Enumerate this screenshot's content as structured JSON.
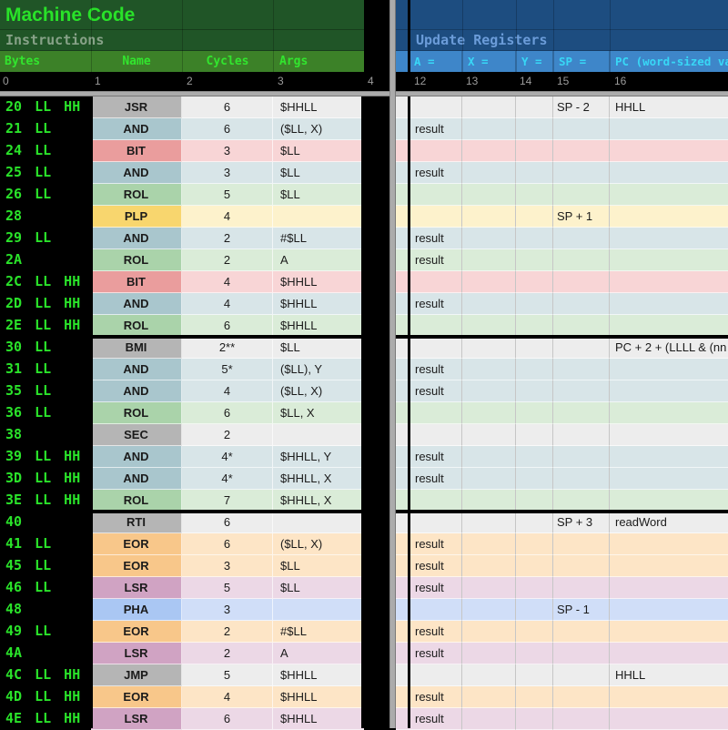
{
  "left_panel": {
    "title": "Machine Code",
    "subtitle": "Instructions",
    "columns": [
      "Bytes",
      "Name",
      "Cycles",
      "Args"
    ],
    "col_indices": [
      "0",
      "1",
      "2",
      "3",
      "4"
    ]
  },
  "right_panel": {
    "title": "Update Registers",
    "columns": [
      "A =",
      "X =",
      "Y =",
      "SP =",
      "PC (word-sized val"
    ],
    "col_indices": [
      "12",
      "13",
      "14",
      "15",
      "16"
    ]
  },
  "colors": {
    "left_header_bg": "#205527",
    "left_band_bg": "#3c8128",
    "title_text": "#29e229",
    "subtitle_text": "#87a288",
    "band_text": "#32e52e",
    "bytes_text": "#2ae32a",
    "right_header_bg": "#1d4d80",
    "right_band_bg": "#3e86c9",
    "right_title_text": "#6b9cd9",
    "right_band_text": "#38d7f6",
    "index_text": "#9b9b9b",
    "pane_divider": "#ababab",
    "background": "#000000"
  },
  "palettes": {
    "gray": {
      "dark": "#b5b5b5",
      "light": "#ededed"
    },
    "teal": {
      "dark": "#a9c6cd",
      "light": "#d8e5e8"
    },
    "pink": {
      "dark": "#ea9d9d",
      "light": "#f8d5d6"
    },
    "green": {
      "dark": "#aad3aa",
      "light": "#daecd8"
    },
    "yellow": {
      "dark": "#f8d66e",
      "light": "#fdf2cc"
    },
    "orange": {
      "dark": "#f8c78a",
      "light": "#fde5c6"
    },
    "mauve": {
      "dark": "#d0a3c3",
      "light": "#ecd8e6"
    },
    "blue": {
      "dark": "#aac7f3",
      "light": "#d0def8"
    }
  },
  "sections": [
    {
      "rows": [
        {
          "bytes": "20 LL HH",
          "name": "JSR",
          "color": "gray",
          "cycles": "6",
          "args": "$HHLL",
          "sp": "SP - 2",
          "pc": "HHLL"
        },
        {
          "bytes": "21 LL",
          "name": "AND",
          "color": "teal",
          "cycles": "6",
          "args": "($LL, X)",
          "a": "result"
        },
        {
          "bytes": "24 LL",
          "name": "BIT",
          "color": "pink",
          "cycles": "3",
          "args": "$LL"
        },
        {
          "bytes": "25 LL",
          "name": "AND",
          "color": "teal",
          "cycles": "3",
          "args": "$LL",
          "a": "result"
        },
        {
          "bytes": "26 LL",
          "name": "ROL",
          "color": "green",
          "cycles": "5",
          "args": "$LL"
        },
        {
          "bytes": "28",
          "name": "PLP",
          "color": "yellow",
          "cycles": "4",
          "args": "",
          "sp": "SP + 1"
        },
        {
          "bytes": "29 LL",
          "name": "AND",
          "color": "teal",
          "cycles": "2",
          "args": "#$LL",
          "a": "result"
        },
        {
          "bytes": "2A",
          "name": "ROL",
          "color": "green",
          "cycles": "2",
          "args": "A",
          "a": "result"
        },
        {
          "bytes": "2C LL HH",
          "name": "BIT",
          "color": "pink",
          "cycles": "4",
          "args": "$HHLL"
        },
        {
          "bytes": "2D LL HH",
          "name": "AND",
          "color": "teal",
          "cycles": "4",
          "args": "$HHLL",
          "a": "result"
        },
        {
          "bytes": "2E LL HH",
          "name": "ROL",
          "color": "green",
          "cycles": "6",
          "args": "$HHLL"
        }
      ]
    },
    {
      "rows": [
        {
          "bytes": "30 LL",
          "name": "BMI",
          "color": "gray",
          "cycles": "2**",
          "args": "$LL",
          "pc": "PC + 2 + (LLLL & (nn"
        },
        {
          "bytes": "31 LL",
          "name": "AND",
          "color": "teal",
          "cycles": "5*",
          "args": "($LL), Y",
          "a": "result"
        },
        {
          "bytes": "35 LL",
          "name": "AND",
          "color": "teal",
          "cycles": "4",
          "args": "($LL, X)",
          "a": "result"
        },
        {
          "bytes": "36 LL",
          "name": "ROL",
          "color": "green",
          "cycles": "6",
          "args": "$LL, X"
        },
        {
          "bytes": "38",
          "name": "SEC",
          "color": "gray",
          "cycles": "2",
          "args": ""
        },
        {
          "bytes": "39 LL HH",
          "name": "AND",
          "color": "teal",
          "cycles": "4*",
          "args": "$HHLL, Y",
          "a": "result"
        },
        {
          "bytes": "3D LL HH",
          "name": "AND",
          "color": "teal",
          "cycles": "4*",
          "args": "$HHLL, X",
          "a": "result"
        },
        {
          "bytes": "3E LL HH",
          "name": "ROL",
          "color": "green",
          "cycles": "7",
          "args": "$HHLL, X"
        }
      ]
    },
    {
      "rows": [
        {
          "bytes": "40",
          "name": "RTI",
          "color": "gray",
          "cycles": "6",
          "args": "",
          "sp": "SP + 3",
          "pc": "readWord"
        },
        {
          "bytes": "41 LL",
          "name": "EOR",
          "color": "orange",
          "cycles": "6",
          "args": "($LL, X)",
          "a": "result"
        },
        {
          "bytes": "45 LL",
          "name": "EOR",
          "color": "orange",
          "cycles": "3",
          "args": "$LL",
          "a": "result"
        },
        {
          "bytes": "46 LL",
          "name": "LSR",
          "color": "mauve",
          "cycles": "5",
          "args": "$LL",
          "a": "result"
        },
        {
          "bytes": "48",
          "name": "PHA",
          "color": "blue",
          "cycles": "3",
          "args": "",
          "sp": "SP - 1"
        },
        {
          "bytes": "49 LL",
          "name": "EOR",
          "color": "orange",
          "cycles": "2",
          "args": "#$LL",
          "a": "result"
        },
        {
          "bytes": "4A",
          "name": "LSR",
          "color": "mauve",
          "cycles": "2",
          "args": "A",
          "a": "result"
        },
        {
          "bytes": "4C LL HH",
          "name": "JMP",
          "color": "gray",
          "cycles": "5",
          "args": "$HHLL",
          "pc": "HHLL"
        },
        {
          "bytes": "4D LL HH",
          "name": "EOR",
          "color": "orange",
          "cycles": "4",
          "args": "$HHLL",
          "a": "result"
        },
        {
          "bytes": "4E LL HH",
          "name": "LSR",
          "color": "mauve",
          "cycles": "6",
          "args": "$HHLL",
          "a": "result"
        }
      ]
    }
  ]
}
